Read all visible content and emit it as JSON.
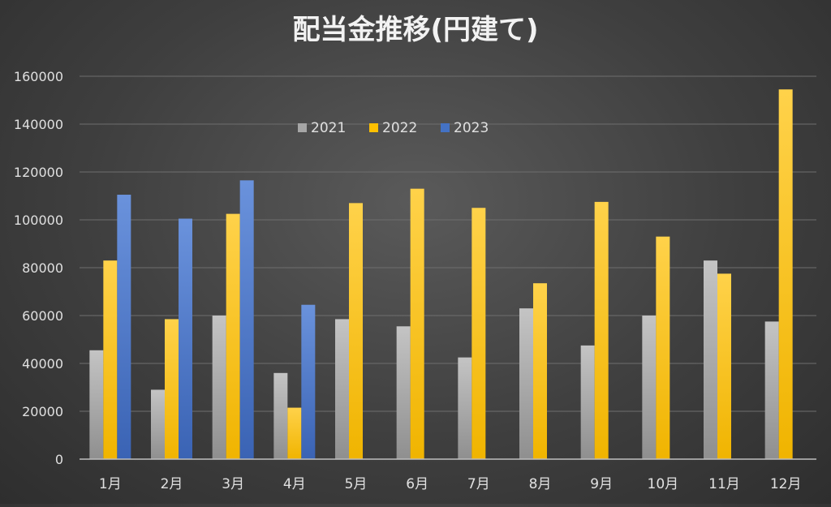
{
  "chart_data": {
    "type": "bar",
    "title": "配当金推移(円建て)",
    "xlabel": "",
    "ylabel": "",
    "categories": [
      "1月",
      "2月",
      "3月",
      "4月",
      "5月",
      "6月",
      "7月",
      "8月",
      "9月",
      "10月",
      "11月",
      "12月"
    ],
    "series": [
      {
        "name": "2021",
        "color": "#a6a6a6",
        "values": [
          45500,
          29000,
          60000,
          36000,
          58500,
          55500,
          42500,
          63000,
          47500,
          60000,
          83000,
          57500
        ]
      },
      {
        "name": "2022",
        "color": "#ffc000",
        "values": [
          83000,
          58500,
          102500,
          21500,
          107000,
          113000,
          105000,
          73500,
          107500,
          93000,
          77500,
          154500
        ]
      },
      {
        "name": "2023",
        "color": "#4472c4",
        "values": [
          110500,
          100500,
          116500,
          64500,
          null,
          null,
          null,
          null,
          null,
          null,
          null,
          null
        ]
      }
    ],
    "ylim": [
      0,
      160000
    ],
    "yticks": [
      0,
      20000,
      40000,
      60000,
      80000,
      100000,
      120000,
      140000,
      160000
    ],
    "grid": true,
    "legend_position": "top-left inside plot"
  }
}
